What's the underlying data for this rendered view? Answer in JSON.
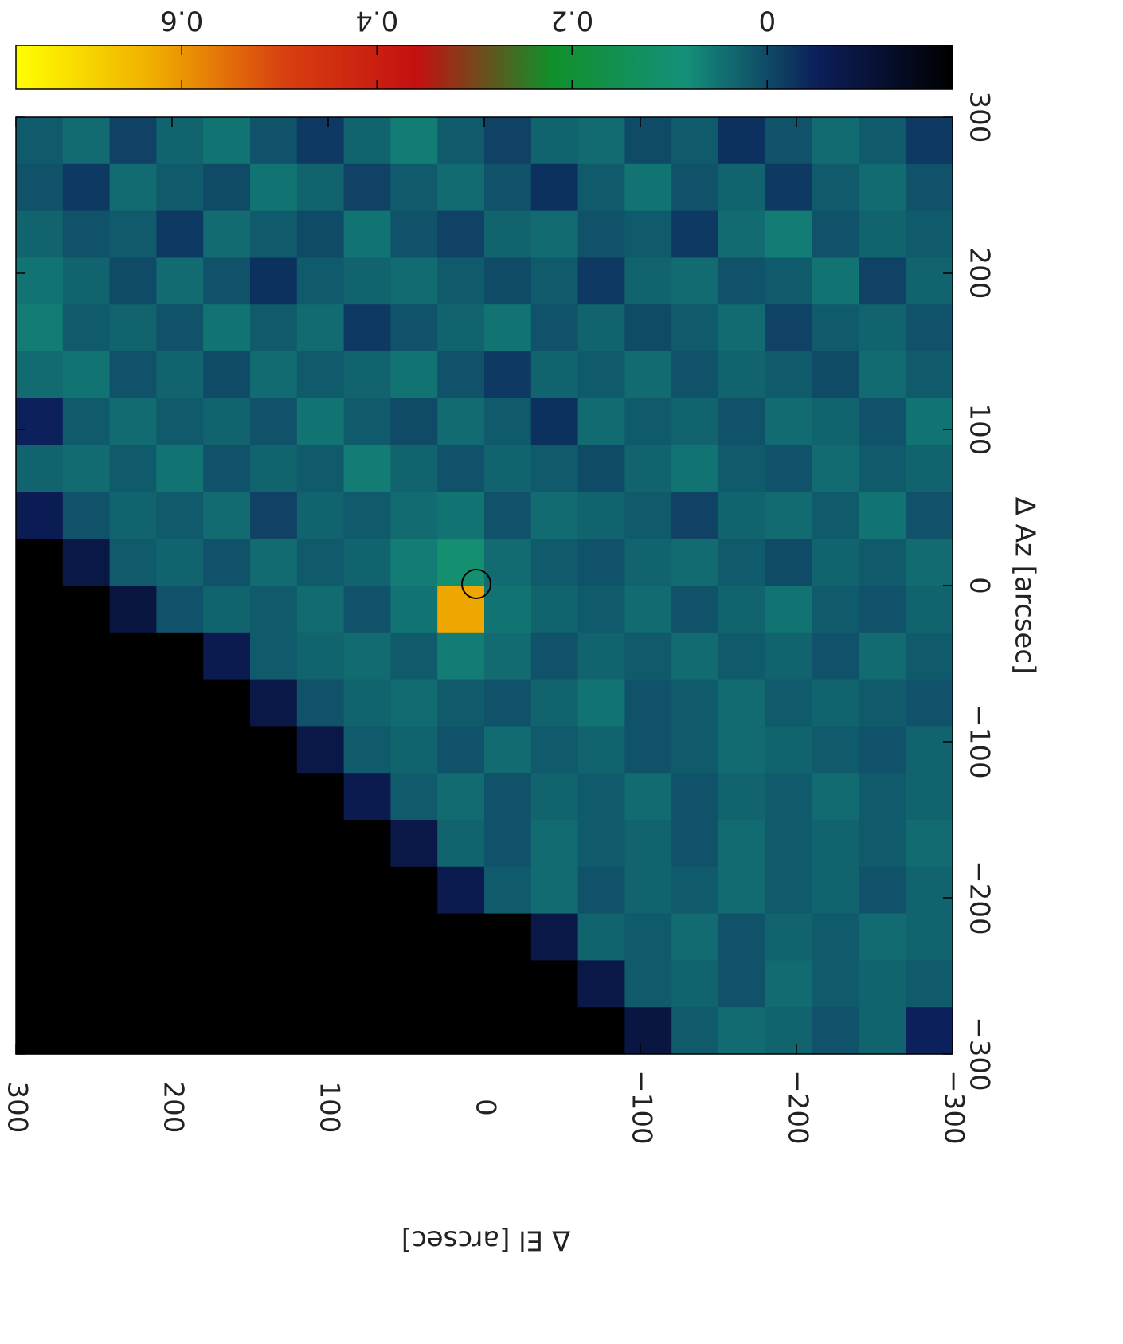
{
  "chart_data": {
    "type": "heatmap",
    "xlabel": "Δ El [arcsec]",
    "ylabel": "Δ Az [arcsec]",
    "xlim": [
      300,
      -300
    ],
    "ylim": [
      300,
      -300
    ],
    "xticks": [
      300,
      200,
      100,
      0,
      {
        "value": -100,
        "label": "−100"
      },
      {
        "value": -200,
        "label": "−200"
      },
      {
        "value": -300,
        "label": "−300"
      }
    ],
    "yticks": [
      300,
      200,
      100,
      0,
      {
        "value": -100,
        "label": "−100"
      },
      {
        "value": -200,
        "label": "−200"
      },
      {
        "value": -300,
        "label": "−300"
      }
    ],
    "zlim": [
      0.77,
      -0.19
    ],
    "zticks": [
      0.6,
      0.4,
      0.2,
      0
    ],
    "colormap": [
      "#000000",
      "#0c1e5a",
      "#14907a",
      "#10902a",
      "#c41010",
      "#d84010",
      "#f0b000",
      "#ffff00"
    ],
    "z": [
      [
        0.02,
        0.04,
        -0.01,
        0.03,
        0.05,
        0.01,
        -0.02,
        0.03,
        0.06,
        0.02,
        -0.01,
        0.03,
        0.04,
        0,
        0.02,
        -0.03,
        0.01,
        0.04,
        0.02,
        -0.02
      ],
      [
        0.01,
        -0.02,
        0.04,
        0.02,
        0,
        0.05,
        0.03,
        -0.01,
        0.02,
        0.04,
        0.01,
        -0.03,
        0.02,
        0.05,
        0.01,
        0.03,
        -0.02,
        0.02,
        0.04,
        0.01
      ],
      [
        0.03,
        0.01,
        0.02,
        -0.02,
        0.04,
        0.02,
        0,
        0.05,
        0.01,
        -0.01,
        0.03,
        0.04,
        0.01,
        0.02,
        -0.02,
        0.04,
        0.06,
        0.01,
        0.03,
        0.02
      ],
      [
        0.05,
        0.03,
        0,
        0.04,
        0.01,
        -0.03,
        0.02,
        0.03,
        0.04,
        0.02,
        0,
        0.02,
        -0.02,
        0.03,
        0.04,
        0.01,
        0.02,
        0.05,
        -0.01,
        0.03
      ],
      [
        0.06,
        0.02,
        0.03,
        0.01,
        0.05,
        0.02,
        0.04,
        -0.02,
        0.01,
        0.03,
        0.05,
        0.01,
        0.03,
        0,
        0.02,
        0.04,
        -0.01,
        0.02,
        0.03,
        0.01
      ],
      [
        0.04,
        0.05,
        0.01,
        0.03,
        0,
        0.04,
        0.02,
        0.03,
        0.05,
        0.01,
        -0.02,
        0.03,
        0.02,
        0.04,
        0.01,
        0.03,
        0.02,
        0,
        0.04,
        0.02
      ],
      [
        -0.05,
        0.02,
        0.04,
        0.02,
        0.03,
        0.01,
        0.05,
        0.02,
        0,
        0.04,
        0.02,
        -0.03,
        0.04,
        0.02,
        0.03,
        0.01,
        0.04,
        0.03,
        0.01,
        0.05
      ],
      [
        0.03,
        0.04,
        0.02,
        0.05,
        0.01,
        0.03,
        0.02,
        0.06,
        0.03,
        0.01,
        0.03,
        0.02,
        0,
        0.03,
        0.05,
        0.02,
        0.01,
        0.04,
        0.02,
        0.03
      ],
      [
        -0.06,
        0.01,
        0.03,
        0.02,
        0.04,
        -0.01,
        0.03,
        0.02,
        0.04,
        0.05,
        0.01,
        0.04,
        0.03,
        0.02,
        -0.01,
        0.03,
        0.04,
        0.02,
        0.05,
        0.01
      ],
      [
        -0.19,
        -0.08,
        0.02,
        0.03,
        0.01,
        0.04,
        0.02,
        0.03,
        0.06,
        0.1,
        0.04,
        0.02,
        0.01,
        0.03,
        0.04,
        0.02,
        0,
        0.03,
        0.02,
        0.04
      ],
      [
        -0.19,
        -0.19,
        -0.09,
        0.01,
        0.03,
        0.02,
        0.04,
        0.01,
        0.05,
        0.62,
        0.05,
        0.03,
        0.02,
        0.04,
        0.01,
        0.03,
        0.05,
        0.02,
        0.01,
        0.03
      ],
      [
        -0.19,
        -0.19,
        -0.19,
        -0.19,
        -0.07,
        0.02,
        0.03,
        0.04,
        0.02,
        0.06,
        0.04,
        0.01,
        0.03,
        0.02,
        0.04,
        0.02,
        0.03,
        0.01,
        0.04,
        0.02
      ],
      [
        -0.19,
        -0.19,
        -0.19,
        -0.19,
        -0.19,
        -0.08,
        0.01,
        0.03,
        0.04,
        0.02,
        0.01,
        0.03,
        0.05,
        0.01,
        0.02,
        0.04,
        0.02,
        0.03,
        0.02,
        0.01
      ],
      [
        -0.19,
        -0.19,
        -0.19,
        -0.19,
        -0.19,
        -0.19,
        -0.08,
        0.02,
        0.03,
        0.01,
        0.04,
        0.02,
        0.03,
        0.01,
        0.02,
        0.04,
        0.03,
        0.02,
        0.01,
        0.03
      ],
      [
        -0.19,
        -0.19,
        -0.19,
        -0.19,
        -0.19,
        -0.19,
        -0.19,
        -0.07,
        0.02,
        0.04,
        0.01,
        0.03,
        0.02,
        0.04,
        0.01,
        0.03,
        0.02,
        0.04,
        0.02,
        0.03
      ],
      [
        -0.19,
        -0.19,
        -0.19,
        -0.19,
        -0.19,
        -0.19,
        -0.19,
        -0.19,
        -0.08,
        0.03,
        0.01,
        0.04,
        0.02,
        0.03,
        0.01,
        0.04,
        0.02,
        0.03,
        0.02,
        0.04
      ],
      [
        -0.19,
        -0.19,
        -0.19,
        -0.19,
        -0.19,
        -0.19,
        -0.19,
        -0.19,
        -0.19,
        -0.07,
        0.02,
        0.04,
        0.01,
        0.03,
        0.02,
        0.04,
        0.02,
        0.03,
        0.01,
        0.03
      ],
      [
        -0.19,
        -0.19,
        -0.19,
        -0.19,
        -0.19,
        -0.19,
        -0.19,
        -0.19,
        -0.19,
        -0.19,
        -0.19,
        -0.08,
        0.03,
        0.02,
        0.04,
        0.01,
        0.03,
        0.02,
        0.04,
        0.03
      ],
      [
        -0.19,
        -0.19,
        -0.19,
        -0.19,
        -0.19,
        -0.19,
        -0.19,
        -0.19,
        -0.19,
        -0.19,
        -0.19,
        -0.19,
        -0.08,
        0.02,
        0.03,
        0.01,
        0.04,
        0.02,
        0.03,
        0.02
      ],
      [
        -0.19,
        -0.19,
        -0.19,
        -0.19,
        -0.19,
        -0.19,
        -0.19,
        -0.19,
        -0.19,
        -0.19,
        -0.19,
        -0.19,
        -0.19,
        -0.09,
        0.02,
        0.04,
        0.03,
        0.01,
        0.03,
        -0.05
      ]
    ]
  }
}
